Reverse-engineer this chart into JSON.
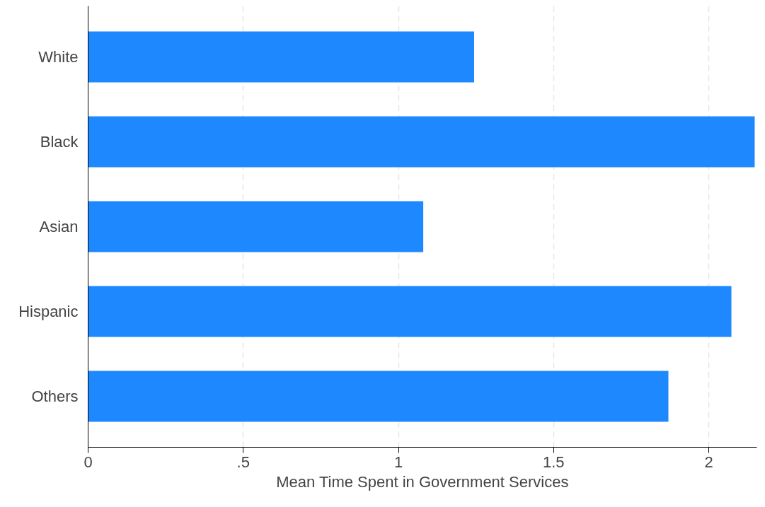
{
  "chart_data": {
    "type": "bar",
    "orientation": "horizontal",
    "xlabel": "Mean Time Spent in Government Services",
    "categories": [
      "White",
      "Black",
      "Asian",
      "Hispanic",
      "Others"
    ],
    "values": [
      1.244,
      2.148,
      1.08,
      2.073,
      1.87
    ],
    "color": "#1e88ff",
    "xlim": [
      0,
      2.155
    ],
    "xticks": [
      0,
      {
        "value": 0.5,
        "label": ".5"
      },
      1,
      1.5,
      2
    ],
    "grid": "x"
  }
}
